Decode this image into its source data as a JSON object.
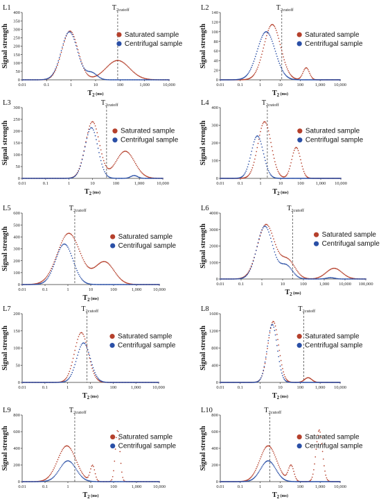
{
  "series_names": [
    "Saturated sample",
    "Centrifugal sample"
  ],
  "colors": {
    "saturated": "#b5402c",
    "centrifugal": "#2a4fa6"
  },
  "axis": {
    "ylabel": "Signal strength",
    "xlabel_main": "T",
    "xlabel_sub": "2",
    "xlabel_unit": " (ms)",
    "cutoff_main": "T",
    "cutoff_sub": "2cutoff",
    "scale": "log"
  },
  "chart_data": [
    {
      "type": "scatter",
      "label": "L1",
      "xlim": [
        0.01,
        10000
      ],
      "xticks": [
        "0.01",
        "0.1",
        "1",
        "10",
        "100",
        "1,000",
        "10,000"
      ],
      "ylim": [
        0,
        400
      ],
      "yticks": [
        "0",
        "50",
        "100",
        "150",
        "200",
        "250",
        "300",
        "350",
        "400"
      ],
      "cutoff": 80,
      "series": [
        {
          "name": "Saturated sample",
          "peaks": [
            [
              0.9,
              290,
              0.33
            ],
            [
              80,
              115,
              0.48
            ]
          ]
        },
        {
          "name": "Centrifugal sample",
          "peaks": [
            [
              0.85,
              285,
              0.33
            ],
            [
              7,
              40,
              0.22
            ]
          ]
        }
      ]
    },
    {
      "type": "scatter",
      "label": "L2",
      "xlim": [
        0.01,
        10000
      ],
      "xticks": [
        "0.01",
        "0.1",
        "1",
        "10",
        "100",
        "1,000",
        "10,000"
      ],
      "ylim": [
        0,
        140
      ],
      "yticks": [
        "0",
        "20",
        "40",
        "60",
        "80",
        "100",
        "120",
        "140"
      ],
      "cutoff": 12,
      "series": [
        {
          "name": "Saturated sample",
          "peaks": [
            [
              4,
              115,
              0.42
            ],
            [
              200,
              25,
              0.16
            ]
          ]
        },
        {
          "name": "Centrifugal sample",
          "peaks": [
            [
              2,
              100,
              0.45
            ]
          ]
        }
      ]
    },
    {
      "type": "scatter",
      "label": "L3",
      "xlim": [
        0.01,
        10000
      ],
      "xticks": [
        "0.01",
        "0.1",
        "1",
        "10",
        "100",
        "1,000",
        "10,000"
      ],
      "ylim": [
        0,
        300
      ],
      "yticks": [
        "0",
        "50",
        "100",
        "150",
        "200",
        "250",
        "300"
      ],
      "cutoff": 40,
      "series": [
        {
          "name": "Saturated sample",
          "peaks": [
            [
              10,
              240,
              0.3
            ],
            [
              250,
              115,
              0.4
            ]
          ]
        },
        {
          "name": "Centrifugal sample",
          "peaks": [
            [
              9,
              215,
              0.28
            ],
            [
              600,
              12,
              0.15
            ]
          ]
        }
      ]
    },
    {
      "type": "scatter",
      "label": "L4",
      "xlim": [
        0.01,
        10000
      ],
      "xticks": [
        "0.01",
        "0.1",
        "1",
        "10",
        "100",
        "1,000",
        "10,000"
      ],
      "ylim": [
        0,
        400
      ],
      "yticks": [
        "0",
        "100",
        "200",
        "300",
        "400"
      ],
      "cutoff": 2.2,
      "series": [
        {
          "name": "Saturated sample",
          "peaks": [
            [
              1.6,
              320,
              0.33
            ],
            [
              60,
              175,
              0.22
            ]
          ]
        },
        {
          "name": "Centrifugal sample",
          "peaks": [
            [
              0.7,
              240,
              0.3
            ]
          ]
        }
      ]
    },
    {
      "type": "scatter",
      "label": "L5",
      "xlim": [
        0.01,
        10000
      ],
      "xticks": [
        "0.01",
        "0.1",
        "1",
        "10",
        "100",
        "1,000",
        "10,000"
      ],
      "ylim": [
        0,
        600
      ],
      "yticks": [
        "0",
        "100",
        "200",
        "300",
        "400",
        "500",
        "600"
      ],
      "cutoff": 2,
      "series": [
        {
          "name": "Saturated sample",
          "peaks": [
            [
              1.1,
              430,
              0.5
            ],
            [
              40,
              190,
              0.42
            ]
          ]
        },
        {
          "name": "Centrifugal sample",
          "peaks": [
            [
              0.7,
              340,
              0.38
            ]
          ]
        }
      ]
    },
    {
      "type": "scatter",
      "label": "L6",
      "xlim": [
        0.01,
        100000
      ],
      "xticks": [
        "0.01",
        "0.1",
        "1",
        "10",
        "100",
        "1,000",
        "10,000",
        "100,000"
      ],
      "ylim": [
        0,
        4000
      ],
      "yticks": [
        "0",
        "1000",
        "2000",
        "3000",
        "4000"
      ],
      "cutoff": 30,
      "series": [
        {
          "name": "Saturated sample",
          "peaks": [
            [
              1.6,
              3300,
              0.42
            ],
            [
              18,
              1100,
              0.35
            ],
            [
              3000,
              650,
              0.38
            ]
          ]
        },
        {
          "name": "Centrifugal sample",
          "peaks": [
            [
              1.4,
              3200,
              0.38
            ],
            [
              15,
              800,
              0.3
            ],
            [
              2000,
              80,
              0.2
            ]
          ]
        }
      ]
    },
    {
      "type": "scatter",
      "label": "L7",
      "xlim": [
        0.01,
        10000
      ],
      "xticks": [
        "0.01",
        "0.1",
        "1",
        "10",
        "100",
        "1,000",
        "10,000"
      ],
      "ylim": [
        0,
        200
      ],
      "yticks": [
        "0",
        "50",
        "100",
        "150",
        "200"
      ],
      "cutoff": 7,
      "series": [
        {
          "name": "Saturated sample",
          "peaks": [
            [
              4,
              145,
              0.3
            ]
          ]
        },
        {
          "name": "Centrifugal sample",
          "peaks": [
            [
              5,
              115,
              0.3
            ]
          ]
        }
      ]
    },
    {
      "type": "scatter",
      "label": "L8",
      "xlim": [
        0.01,
        10000
      ],
      "xticks": [
        "0.01",
        "0.1",
        "1",
        "10",
        "100",
        "1,000",
        "10,000"
      ],
      "ylim": [
        0,
        1600
      ],
      "yticks": [
        "0",
        "400",
        "800",
        "1200",
        "1600"
      ],
      "cutoff": 150,
      "series": [
        {
          "name": "Saturated sample",
          "peaks": [
            [
              4.5,
              1420,
              0.27
            ],
            [
              250,
              110,
              0.18
            ]
          ]
        },
        {
          "name": "Centrifugal sample",
          "peaks": [
            [
              4,
              1350,
              0.25
            ]
          ]
        }
      ]
    },
    {
      "type": "scatter",
      "label": "L9",
      "xlim": [
        0.01,
        10000
      ],
      "xticks": [
        "0.01",
        "0.1",
        "1",
        "10",
        "100",
        "1,000",
        "10,000"
      ],
      "ylim": [
        0,
        800
      ],
      "yticks": [
        "0",
        "200",
        "400",
        "600",
        "800"
      ],
      "cutoff": 2,
      "series": [
        {
          "name": "Saturated sample",
          "peaks": [
            [
              0.9,
              430,
              0.4
            ],
            [
              12,
              190,
              0.1
            ],
            [
              150,
              620,
              0.1
            ]
          ]
        },
        {
          "name": "Centrifugal sample",
          "peaks": [
            [
              1,
              250,
              0.36
            ]
          ]
        }
      ]
    },
    {
      "type": "scatter",
      "label": "L10",
      "xlim": [
        0.01,
        10000
      ],
      "xticks": [
        "0.01",
        "0.1",
        "1",
        "10",
        "100",
        "1,000",
        "10,000"
      ],
      "ylim": [
        0,
        800
      ],
      "yticks": [
        "0",
        "200",
        "400",
        "600",
        "800"
      ],
      "cutoff": 3,
      "series": [
        {
          "name": "Saturated sample",
          "peaks": [
            [
              2.5,
              430,
              0.42
            ],
            [
              35,
              190,
              0.14
            ],
            [
              900,
              620,
              0.16
            ]
          ]
        },
        {
          "name": "Centrifugal sample",
          "peaks": [
            [
              2.5,
              250,
              0.38
            ]
          ]
        }
      ]
    }
  ]
}
